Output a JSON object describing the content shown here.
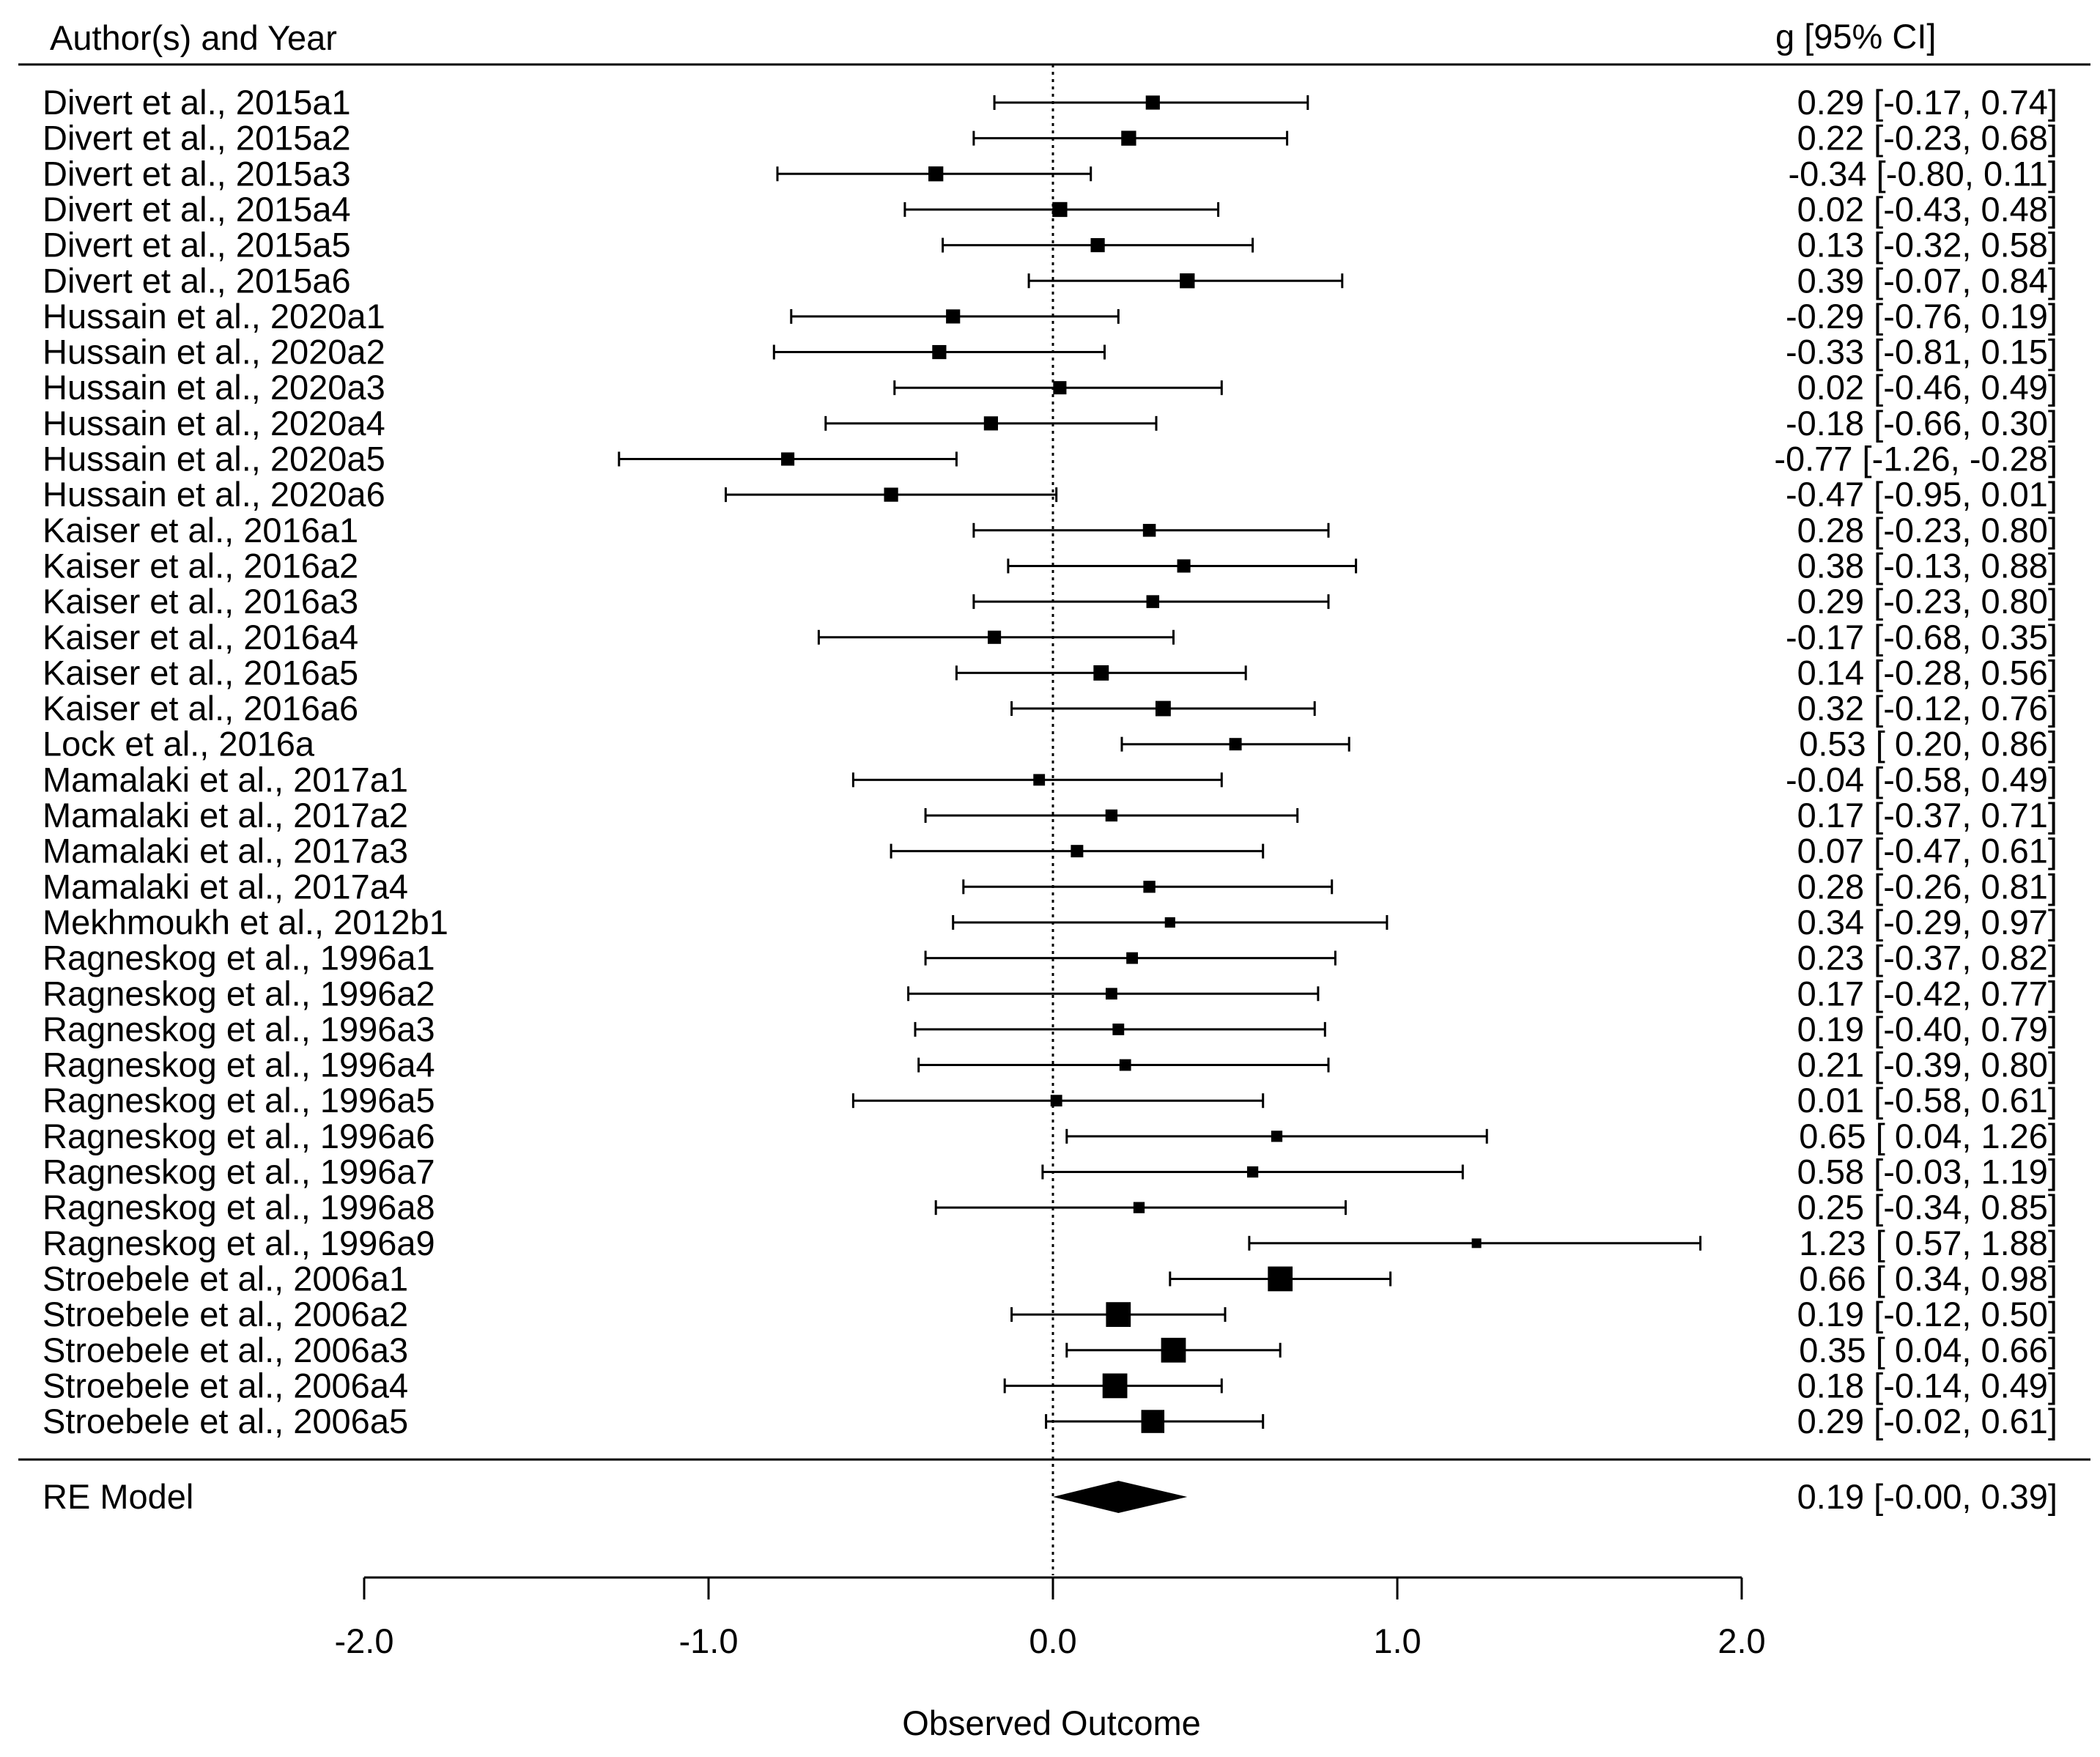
{
  "chart_data": {
    "type": "forest",
    "header_left": "Author(s) and Year",
    "header_right": "g [95% CI]",
    "xlabel": "Observed Outcome",
    "xlim": [
      -2.0,
      2.0
    ],
    "reference_line": 0,
    "xticks": [
      {
        "value": -2.0,
        "label": "-2.0"
      },
      {
        "value": -1.0,
        "label": "-1.0"
      },
      {
        "value": 0.0,
        "label": "0.0"
      },
      {
        "value": 1.0,
        "label": "1.0"
      },
      {
        "value": 2.0,
        "label": "2.0"
      }
    ],
    "studies": [
      {
        "label": "Divert et al., 2015a1",
        "estimate": 0.29,
        "lower": -0.17,
        "upper": 0.74,
        "text": "0.29 [-0.17,  0.74]",
        "weight": 0.4
      },
      {
        "label": "Divert et al., 2015a2",
        "estimate": 0.22,
        "lower": -0.23,
        "upper": 0.68,
        "text": "0.22 [-0.23,  0.68]",
        "weight": 0.44
      },
      {
        "label": "Divert et al., 2015a3",
        "estimate": -0.34,
        "lower": -0.8,
        "upper": 0.11,
        "text": "-0.34 [-0.80,  0.11]",
        "weight": 0.44
      },
      {
        "label": "Divert et al., 2015a4",
        "estimate": 0.02,
        "lower": -0.43,
        "upper": 0.48,
        "text": "0.02 [-0.43,  0.48]",
        "weight": 0.44
      },
      {
        "label": "Divert et al., 2015a5",
        "estimate": 0.13,
        "lower": -0.32,
        "upper": 0.58,
        "text": "0.13 [-0.32,  0.58]",
        "weight": 0.4
      },
      {
        "label": "Divert et al., 2015a6",
        "estimate": 0.39,
        "lower": -0.07,
        "upper": 0.84,
        "text": "0.39 [-0.07,  0.84]",
        "weight": 0.44
      },
      {
        "label": "Hussain et al., 2020a1",
        "estimate": -0.29,
        "lower": -0.76,
        "upper": 0.19,
        "text": "-0.29 [-0.76,  0.19]",
        "weight": 0.4
      },
      {
        "label": "Hussain et al., 2020a2",
        "estimate": -0.33,
        "lower": -0.81,
        "upper": 0.15,
        "text": "-0.33 [-0.81,  0.15]",
        "weight": 0.4
      },
      {
        "label": "Hussain et al., 2020a3",
        "estimate": 0.02,
        "lower": -0.46,
        "upper": 0.49,
        "text": "0.02 [-0.46,  0.49]",
        "weight": 0.36
      },
      {
        "label": "Hussain et al., 2020a4",
        "estimate": -0.18,
        "lower": -0.66,
        "upper": 0.3,
        "text": "-0.18 [-0.66,  0.30]",
        "weight": 0.4
      },
      {
        "label": "Hussain et al., 2020a5",
        "estimate": -0.77,
        "lower": -1.26,
        "upper": -0.28,
        "text": "-0.77 [-1.26, -0.28]",
        "weight": 0.36
      },
      {
        "label": "Hussain et al., 2020a6",
        "estimate": -0.47,
        "lower": -0.95,
        "upper": 0.01,
        "text": "-0.47 [-0.95,  0.01]",
        "weight": 0.4
      },
      {
        "label": "Kaiser et al., 2016a1",
        "estimate": 0.28,
        "lower": -0.23,
        "upper": 0.8,
        "text": "0.28 [-0.23,  0.80]",
        "weight": 0.34
      },
      {
        "label": "Kaiser et al., 2016a2",
        "estimate": 0.38,
        "lower": -0.13,
        "upper": 0.88,
        "text": "0.38 [-0.13,  0.88]",
        "weight": 0.36
      },
      {
        "label": "Kaiser et al., 2016a3",
        "estimate": 0.29,
        "lower": -0.23,
        "upper": 0.8,
        "text": "0.29 [-0.23,  0.80]",
        "weight": 0.34
      },
      {
        "label": "Kaiser et al., 2016a4",
        "estimate": -0.17,
        "lower": -0.68,
        "upper": 0.35,
        "text": "-0.17 [-0.68,  0.35]",
        "weight": 0.36
      },
      {
        "label": "Kaiser et al., 2016a5",
        "estimate": 0.14,
        "lower": -0.28,
        "upper": 0.56,
        "text": "0.14 [-0.28,  0.56]",
        "weight": 0.46
      },
      {
        "label": "Kaiser et al., 2016a6",
        "estimate": 0.32,
        "lower": -0.12,
        "upper": 0.76,
        "text": "0.32 [-0.12,  0.76]",
        "weight": 0.46
      },
      {
        "label": "Lock et al., 2016a",
        "estimate": 0.53,
        "lower": 0.2,
        "upper": 0.86,
        "text": "0.53 [ 0.20,  0.86]",
        "weight": 0.32
      },
      {
        "label": "Mamalaki et al., 2017a1",
        "estimate": -0.04,
        "lower": -0.58,
        "upper": 0.49,
        "text": "-0.04 [-0.58,  0.49]",
        "weight": 0.28
      },
      {
        "label": "Mamalaki et al., 2017a2",
        "estimate": 0.17,
        "lower": -0.37,
        "upper": 0.71,
        "text": "0.17 [-0.37,  0.71]",
        "weight": 0.3
      },
      {
        "label": "Mamalaki et al., 2017a3",
        "estimate": 0.07,
        "lower": -0.47,
        "upper": 0.61,
        "text": "0.07 [-0.47,  0.61]",
        "weight": 0.32
      },
      {
        "label": "Mamalaki et al., 2017a4",
        "estimate": 0.28,
        "lower": -0.26,
        "upper": 0.81,
        "text": "0.28 [-0.26,  0.81]",
        "weight": 0.3
      },
      {
        "label": "Mekhmoukh et al., 2012b1",
        "estimate": 0.34,
        "lower": -0.29,
        "upper": 0.97,
        "text": "0.34 [-0.29,  0.97]",
        "weight": 0.22
      },
      {
        "label": "Ragneskog et al., 1996a1",
        "estimate": 0.23,
        "lower": -0.37,
        "upper": 0.82,
        "text": "0.23 [-0.37,  0.82]",
        "weight": 0.28
      },
      {
        "label": "Ragneskog et al., 1996a2",
        "estimate": 0.17,
        "lower": -0.42,
        "upper": 0.77,
        "text": "0.17 [-0.42,  0.77]",
        "weight": 0.28
      },
      {
        "label": "Ragneskog et al., 1996a3",
        "estimate": 0.19,
        "lower": -0.4,
        "upper": 0.79,
        "text": "0.19 [-0.40,  0.79]",
        "weight": 0.28
      },
      {
        "label": "Ragneskog et al., 1996a4",
        "estimate": 0.21,
        "lower": -0.39,
        "upper": 0.8,
        "text": "0.21 [-0.39,  0.80]",
        "weight": 0.28
      },
      {
        "label": "Ragneskog et al., 1996a5",
        "estimate": 0.01,
        "lower": -0.58,
        "upper": 0.61,
        "text": "0.01 [-0.58,  0.61]",
        "weight": 0.28
      },
      {
        "label": "Ragneskog et al., 1996a6",
        "estimate": 0.65,
        "lower": 0.04,
        "upper": 1.26,
        "text": "0.65 [ 0.04,  1.26]",
        "weight": 0.26
      },
      {
        "label": "Ragneskog et al., 1996a7",
        "estimate": 0.58,
        "lower": -0.03,
        "upper": 1.19,
        "text": "0.58 [-0.03,  1.19]",
        "weight": 0.26
      },
      {
        "label": "Ragneskog et al., 1996a8",
        "estimate": 0.25,
        "lower": -0.34,
        "upper": 0.85,
        "text": "0.25 [-0.34,  0.85]",
        "weight": 0.26
      },
      {
        "label": "Ragneskog et al., 1996a9",
        "estimate": 1.23,
        "lower": 0.57,
        "upper": 1.88,
        "text": "1.23 [ 0.57,  1.88]",
        "weight": 0.18
      },
      {
        "label": "Stroebele et al., 2006a1",
        "estimate": 0.66,
        "lower": 0.34,
        "upper": 0.98,
        "text": "0.66 [ 0.34,  0.98]",
        "weight": 0.92
      },
      {
        "label": "Stroebele et al., 2006a2",
        "estimate": 0.19,
        "lower": -0.12,
        "upper": 0.5,
        "text": "0.19 [-0.12,  0.50]",
        "weight": 0.92
      },
      {
        "label": "Stroebele et al., 2006a3",
        "estimate": 0.35,
        "lower": 0.04,
        "upper": 0.66,
        "text": "0.35 [ 0.04,  0.66]",
        "weight": 0.92
      },
      {
        "label": "Stroebele et al., 2006a4",
        "estimate": 0.18,
        "lower": -0.14,
        "upper": 0.49,
        "text": "0.18 [-0.14,  0.49]",
        "weight": 0.92
      },
      {
        "label": "Stroebele et al., 2006a5",
        "estimate": 0.29,
        "lower": -0.02,
        "upper": 0.61,
        "text": "0.29 [-0.02,  0.61]",
        "weight": 0.84
      }
    ],
    "summary": {
      "label": "RE Model",
      "estimate": 0.19,
      "lower": -0.0,
      "upper": 0.39,
      "text": "0.19 [-0.00,  0.39]"
    }
  }
}
